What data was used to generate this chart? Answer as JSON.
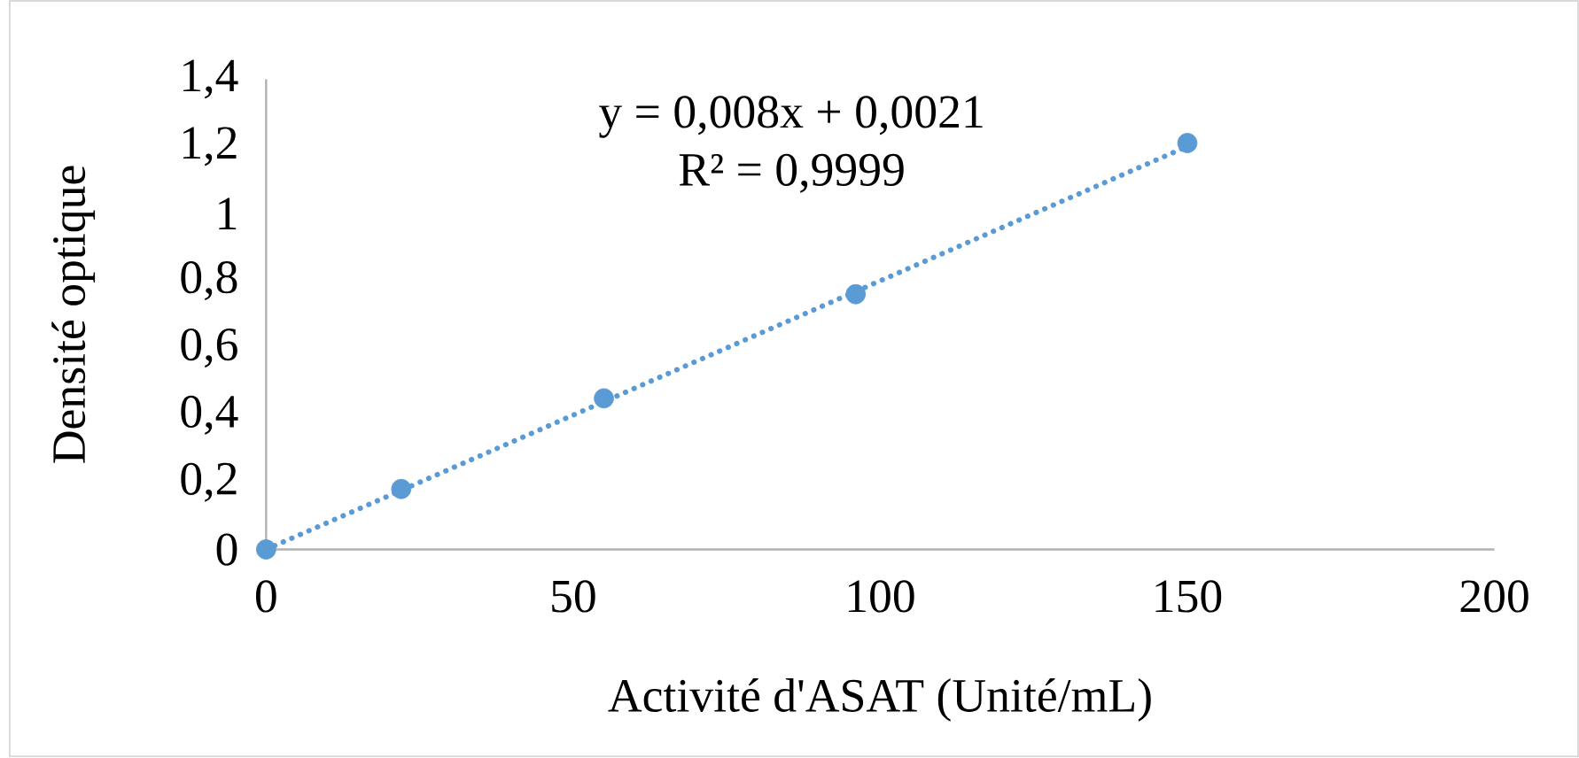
{
  "chart_data": {
    "type": "scatter",
    "xlabel": "Activité d'ASAT (Unité/mL)",
    "ylabel": "Densité optique",
    "marker": "circle",
    "annotations": [
      "y = 0,008x + 0,0021",
      "R² = 0,9999"
    ],
    "series": [
      {
        "color": "#5b9bd5",
        "x": [
          0,
          22,
          55,
          96,
          150
        ],
        "values": [
          0,
          0.18,
          0.45,
          0.76,
          1.21
        ]
      },
      {
        "type": "line",
        "color": "#5b9bd5",
        "line_style": "dotted",
        "marker": "none",
        "x": [
          0,
          150
        ],
        "values": [
          0,
          1.2
        ]
      }
    ],
    "xlim": [
      0,
      200
    ],
    "xticks": [
      0,
      50,
      100,
      150,
      200
    ],
    "ylim": [
      0,
      1.4
    ],
    "yticks": [
      0,
      {
        "value": 0.2,
        "label": "0,2"
      },
      {
        "value": 0.4,
        "label": "0,4"
      },
      {
        "value": 0.6,
        "label": "0,6"
      },
      {
        "value": 0.8,
        "label": "0,8"
      },
      1,
      {
        "value": 1.2,
        "label": "1,2"
      },
      {
        "value": 1.4,
        "label": "1,4"
      }
    ]
  }
}
